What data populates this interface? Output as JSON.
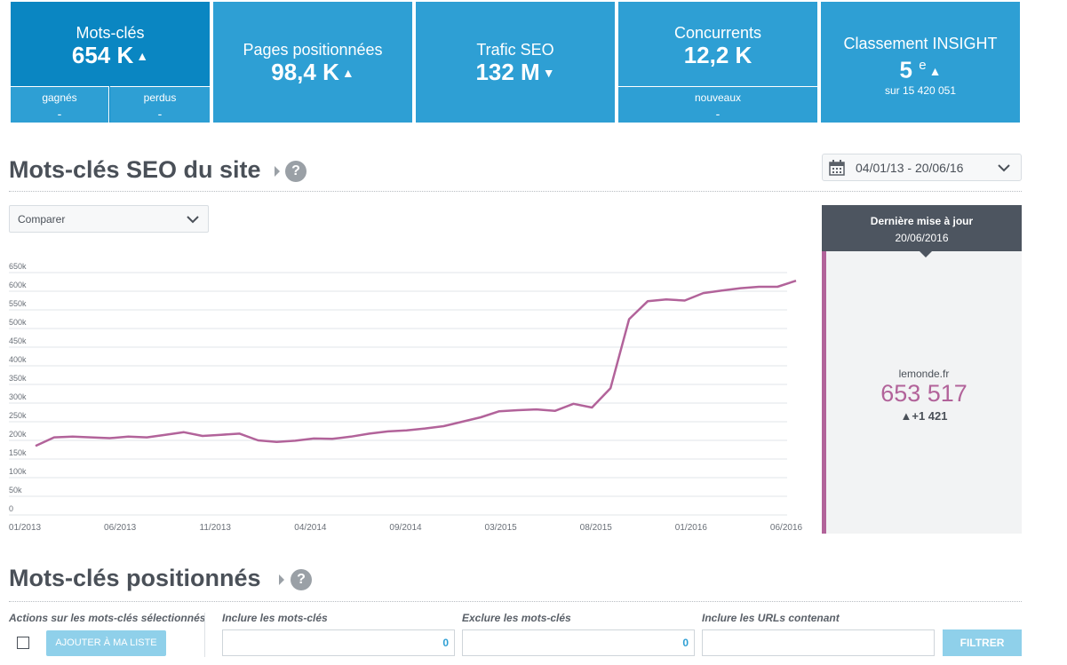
{
  "tiles": {
    "keywords": {
      "label": "Mots-clés",
      "value": "654 K",
      "trend": "▲",
      "won_label": "gagnés",
      "won_value": "-",
      "lost_label": "perdus",
      "lost_value": "-"
    },
    "pages": {
      "label": "Pages positionnées",
      "value": "98,4 K",
      "trend": "▲"
    },
    "traffic": {
      "label": "Trafic SEO",
      "value": "132 M",
      "trend": "▼"
    },
    "competitors": {
      "label": "Concurrents",
      "value": "12,2 K",
      "new_label": "nouveaux",
      "new_value": "-"
    },
    "ranking": {
      "label": "Classement INSIGHT",
      "value": "5",
      "suffix": "e",
      "trend": "▲",
      "sub": "sur 15 420 051"
    }
  },
  "section1": {
    "title": "Mots-clés SEO du site",
    "help": "?"
  },
  "date_range": {
    "value": "04/01/13 - 20/06/16"
  },
  "compare": {
    "label": "Comparer"
  },
  "panel": {
    "title": "Dernière mise à jour",
    "date": "20/06/2016",
    "site": "lemonde.fr",
    "value": "653 517",
    "delta": "▲+1 421"
  },
  "colors": {
    "accent": "#2e9fd4",
    "accent_dark": "#0a86c2",
    "series": "#b2639a",
    "panel_head": "#4d5560"
  },
  "chart_data": {
    "type": "line",
    "title": "",
    "xlabel": "",
    "ylabel": "",
    "ylim": [
      0,
      650000
    ],
    "y_ticks": [
      "0",
      "50k",
      "100k",
      "150k",
      "200k",
      "250k",
      "300k",
      "350k",
      "400k",
      "450k",
      "500k",
      "550k",
      "600k",
      "650k"
    ],
    "x_ticks": [
      "01/2013",
      "06/2013",
      "11/2013",
      "04/2014",
      "09/2014",
      "03/2015",
      "08/2015",
      "01/2016",
      "06/2016"
    ],
    "grid": true,
    "series": [
      {
        "color": "#b2639a",
        "x": [
          "2013-01",
          "2013-02",
          "2013-03",
          "2013-04",
          "2013-05",
          "2013-06",
          "2013-07",
          "2013-08",
          "2013-09",
          "2013-10",
          "2013-11",
          "2013-12",
          "2014-01",
          "2014-02",
          "2014-03",
          "2014-04",
          "2014-05",
          "2014-06",
          "2014-07",
          "2014-08",
          "2014-09",
          "2014-10",
          "2014-11",
          "2014-12",
          "2015-01",
          "2015-02",
          "2015-03",
          "2015-04",
          "2015-05",
          "2015-06",
          "2015-07",
          "2015-08",
          "2015-09",
          "2015-10",
          "2015-11",
          "2015-12",
          "2016-01",
          "2016-02",
          "2016-03",
          "2016-04",
          "2016-05",
          "2016-06"
        ],
        "values": [
          185000,
          208000,
          210000,
          208000,
          206000,
          210000,
          208000,
          215000,
          222000,
          212000,
          215000,
          218000,
          200000,
          196000,
          199000,
          205000,
          204000,
          210000,
          218000,
          224000,
          227000,
          232000,
          238000,
          250000,
          262000,
          278000,
          281000,
          283000,
          279000,
          298000,
          288000,
          340000,
          525000,
          573000,
          578000,
          575000,
          595000,
          602000,
          608000,
          612000,
          612000,
          628000
        ]
      }
    ]
  },
  "section2": {
    "title": "Mots-clés positionnés",
    "help": "?"
  },
  "filters": {
    "actions_label": "Actions sur les mots-clés sélectionnés",
    "add_button": "AJOUTER À MA LISTE",
    "include_label": "Inclure les mots-clés",
    "include_count": "0",
    "exclude_label": "Exclure les mots-clés",
    "exclude_count": "0",
    "urls_label": "Inclure les URLs contenant",
    "filter_button": "FILTRER"
  }
}
